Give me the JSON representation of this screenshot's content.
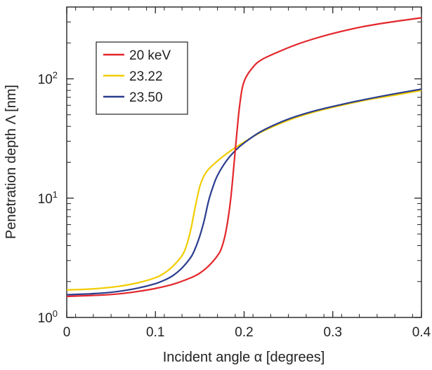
{
  "chart_data": {
    "type": "line",
    "title": "",
    "xlabel": "Incident angle α [degrees]",
    "ylabel": "Penetration depth  Λ [nm]",
    "xlim": [
      0,
      0.4
    ],
    "ylim": [
      1,
      400
    ],
    "y_scale": "log",
    "grid": false,
    "legend_placement": "top-left",
    "x_ticks": [
      {
        "value": 0,
        "label": "0"
      },
      {
        "value": 0.1,
        "label": "0.1"
      },
      {
        "value": 0.2,
        "label": "0.2"
      },
      {
        "value": 0.3,
        "label": "0.3"
      },
      {
        "value": 0.4,
        "label": "0.4"
      }
    ],
    "y_ticks": [
      {
        "value": 1,
        "base": "10",
        "exp": "0"
      },
      {
        "value": 10,
        "base": "10",
        "exp": "1"
      },
      {
        "value": 100,
        "base": "10",
        "exp": "2"
      }
    ],
    "series": [
      {
        "name": "20 keV",
        "color": "#e3262b",
        "x": [
          0,
          0.02,
          0.04,
          0.06,
          0.08,
          0.1,
          0.12,
          0.14,
          0.15,
          0.16,
          0.17,
          0.175,
          0.18,
          0.185,
          0.19,
          0.195,
          0.2,
          0.21,
          0.22,
          0.24,
          0.26,
          0.28,
          0.3,
          0.33,
          0.36,
          0.4
        ],
        "y": [
          1.5,
          1.52,
          1.54,
          1.58,
          1.65,
          1.75,
          1.9,
          2.15,
          2.35,
          2.7,
          3.3,
          3.9,
          5.5,
          10,
          25,
          60,
          95,
          125,
          145,
          170,
          195,
          218,
          240,
          270,
          295,
          325
        ]
      },
      {
        "name": "23.22",
        "color": "#f2cc00",
        "x": [
          0,
          0.02,
          0.04,
          0.06,
          0.08,
          0.1,
          0.11,
          0.12,
          0.13,
          0.135,
          0.14,
          0.145,
          0.15,
          0.155,
          0.16,
          0.17,
          0.18,
          0.19,
          0.2,
          0.22,
          0.25,
          0.28,
          0.31,
          0.34,
          0.37,
          0.4
        ],
        "y": [
          1.7,
          1.72,
          1.76,
          1.83,
          1.95,
          2.15,
          2.35,
          2.7,
          3.3,
          4.0,
          5.5,
          8.5,
          12.5,
          15.5,
          17.5,
          20.5,
          23.5,
          26.5,
          29.5,
          36,
          45,
          53,
          60,
          67,
          73,
          80
        ]
      },
      {
        "name": "23.50",
        "color": "#2b3d8f",
        "x": [
          0,
          0.02,
          0.04,
          0.06,
          0.08,
          0.1,
          0.11,
          0.12,
          0.13,
          0.14,
          0.145,
          0.15,
          0.155,
          0.16,
          0.165,
          0.17,
          0.18,
          0.19,
          0.2,
          0.22,
          0.25,
          0.28,
          0.31,
          0.34,
          0.37,
          0.4
        ],
        "y": [
          1.55,
          1.57,
          1.6,
          1.66,
          1.76,
          1.92,
          2.05,
          2.25,
          2.6,
          3.2,
          3.8,
          4.8,
          6.5,
          9.5,
          12.5,
          15.5,
          20.5,
          25,
          29,
          36.5,
          46,
          54,
          61,
          68,
          75,
          82
        ]
      }
    ]
  }
}
